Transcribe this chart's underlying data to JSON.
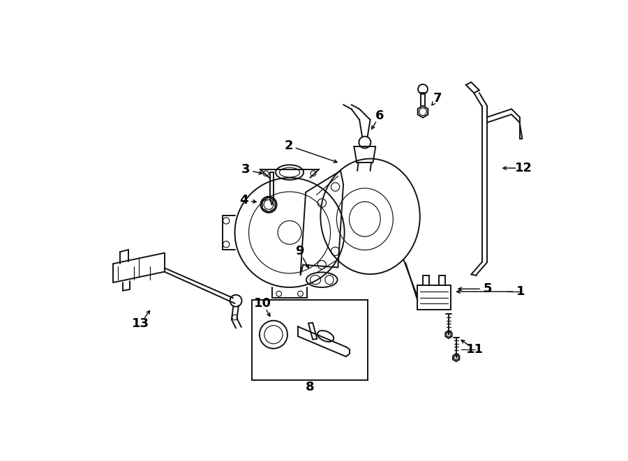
{
  "bg_color": "#ffffff",
  "line_color": "#111111",
  "figsize": [
    9.0,
    6.61
  ],
  "dpi": 100,
  "lw_main": 1.4,
  "lw_thin": 0.85,
  "label_fontsize": 13
}
